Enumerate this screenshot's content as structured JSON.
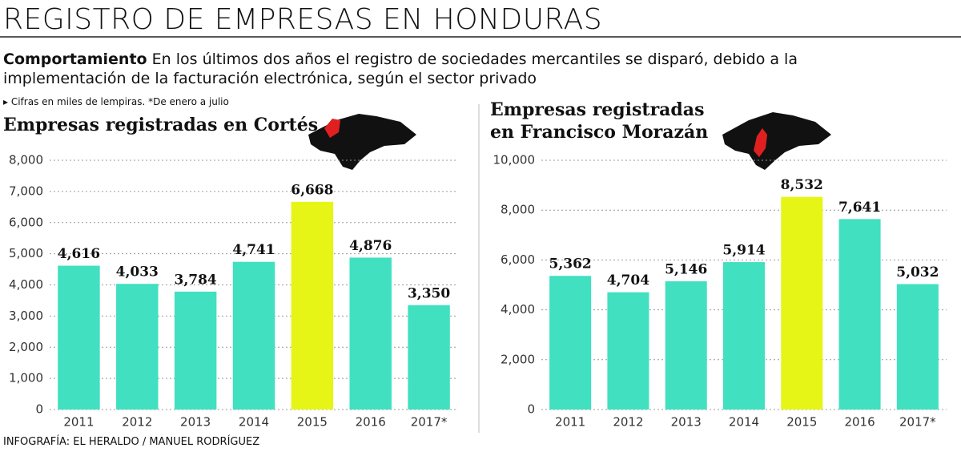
{
  "title": "REGISTRO DE EMPRESAS EN HONDURAS",
  "lead_label": "Comportamiento",
  "lead_text": [
    "En los últimos dos años el registro de sociedades mercantiles se disparó, debido a la",
    "implementación de la facturación electrónica, según el sector privado"
  ],
  "note": "Cifras en miles de lempiras. *De enero a julio",
  "credit": "INFOGRAFÍA: EL HERALDO / MANUEL RODRÍGUEZ",
  "chart_data": [
    {
      "type": "bar",
      "title": [
        "Empresas registradas en Cortés"
      ],
      "categories": [
        "2011",
        "2012",
        "2013",
        "2014",
        "2015",
        "2016",
        "2017*"
      ],
      "values": [
        4616,
        4033,
        3784,
        4741,
        6668,
        4876,
        3350
      ],
      "value_labels": [
        "4,616",
        "4,033",
        "3,784",
        "4,741",
        "6,668",
        "4,876",
        "3,350"
      ],
      "colors": [
        "#40e0c0",
        "#40e0c0",
        "#40e0c0",
        "#40e0c0",
        "#e6f516",
        "#40e0c0",
        "#40e0c0"
      ],
      "ylim": [
        0,
        8000
      ],
      "yticks": [
        0,
        {
          "value": 1000,
          "label": "1,000"
        },
        {
          "value": 2000,
          "label": "2,000"
        },
        {
          "value": 3000,
          "label": "3,000"
        },
        {
          "value": 4000,
          "label": "4,000"
        },
        {
          "value": 5000,
          "label": "5,000"
        },
        {
          "value": 6000,
          "label": "6,000"
        },
        {
          "value": 7000,
          "label": "7,000"
        },
        {
          "value": 8000,
          "label": "8,000"
        }
      ],
      "grid": true
    },
    {
      "type": "bar",
      "title": [
        "Empresas registradas",
        "en Francisco Morazán"
      ],
      "categories": [
        "2011",
        "2012",
        "2013",
        "2014",
        "2015",
        "2016",
        "2017*"
      ],
      "values": [
        5362,
        4704,
        5146,
        5914,
        8532,
        7641,
        5032
      ],
      "value_labels": [
        "5,362",
        "4,704",
        "5,146",
        "5,914",
        "8,532",
        "7,641",
        "5,032"
      ],
      "colors": [
        "#40e0c0",
        "#40e0c0",
        "#40e0c0",
        "#40e0c0",
        "#e6f516",
        "#40e0c0",
        "#40e0c0"
      ],
      "ylim": [
        0,
        10000
      ],
      "yticks": [
        0,
        {
          "value": 2000,
          "label": "2,000"
        },
        {
          "value": 4000,
          "label": "4,000"
        },
        {
          "value": 6000,
          "label": "6,000"
        },
        {
          "value": 8000,
          "label": "8,000"
        },
        {
          "value": 10000,
          "label": "10,000"
        }
      ],
      "grid": true
    }
  ]
}
